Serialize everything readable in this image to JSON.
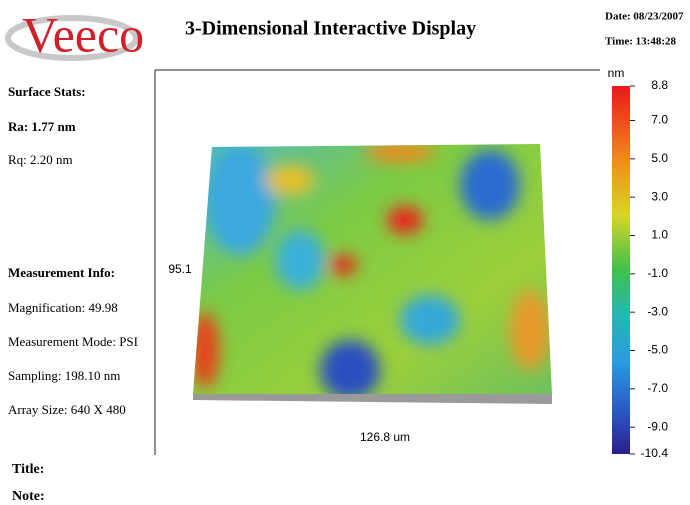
{
  "header": {
    "logo": "Veeco",
    "title": "3-Dimensional Interactive Display",
    "date": "Date: 08/23/2007",
    "time": "Time: 13:48:28"
  },
  "surface_stats": {
    "heading": "Surface Stats:",
    "ra": "Ra: 1.77 nm",
    "rq": "Rq: 2.20 nm"
  },
  "measurement_info": {
    "heading": "Measurement Info:",
    "magnification": "Magnification: 49.98",
    "mode": "Measurement Mode: PSI",
    "sampling": "Sampling: 198.10 nm",
    "array_size": "Array Size: 640 X 480"
  },
  "plot": {
    "y_label": "95.1",
    "x_label": "126.8 um"
  },
  "colorbar": {
    "unit": "nm",
    "range": [
      -10.4,
      8.8
    ],
    "ticks": [
      {
        "value": 8.8,
        "label": "8.8"
      },
      {
        "value": 7,
        "label": "7.0"
      },
      {
        "value": 5,
        "label": "5.0"
      },
      {
        "value": 3,
        "label": "3.0"
      },
      {
        "value": 1,
        "label": "1.0"
      },
      {
        "value": -1,
        "label": "-1.0"
      },
      {
        "value": -3,
        "label": "-3.0"
      },
      {
        "value": -5,
        "label": "-5.0"
      },
      {
        "value": -7,
        "label": "-7.0"
      },
      {
        "value": -9,
        "label": "-9.0"
      },
      {
        "value": -10.4,
        "label": "-10.4"
      }
    ]
  },
  "footer": {
    "title": "Title:",
    "note": "Note:"
  }
}
